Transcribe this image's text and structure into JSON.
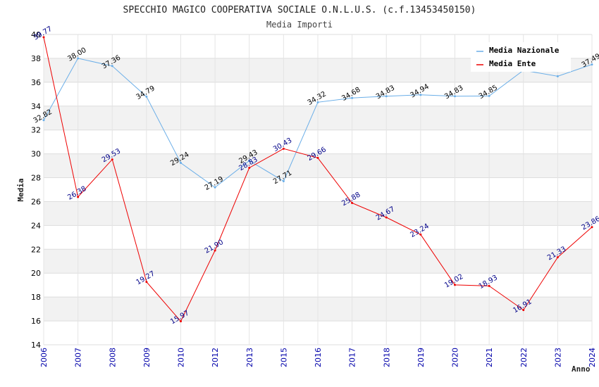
{
  "chart_data": {
    "type": "line",
    "title": "SPECCHIO MAGICO COOPERATIVA SOCIALE O.N.L.U.S. (c.f.13453450150)",
    "subtitle": "Media Importi",
    "xlabel": "Anno",
    "ylabel": "Media",
    "ylim": [
      14,
      40
    ],
    "yticks": [
      "14",
      "16",
      "18",
      "20",
      "22",
      "24",
      "26",
      "28",
      "30",
      "32",
      "34",
      "36",
      "38",
      "40"
    ],
    "categories": [
      "2006",
      "2007",
      "2008",
      "2009",
      "2010",
      "2012",
      "2013",
      "2015",
      "2016",
      "2017",
      "2018",
      "2019",
      "2020",
      "2021",
      "2022",
      "2023",
      "2024"
    ],
    "series": [
      {
        "name": "Media Nazionale",
        "color": "#6aaee8",
        "values": [
          32.82,
          38.0,
          37.36,
          34.79,
          29.24,
          27.19,
          29.43,
          27.71,
          34.32,
          34.68,
          34.83,
          34.94,
          34.83,
          34.85,
          37.0,
          36.5,
          37.49
        ],
        "labels": [
          "32.82",
          "38.00",
          "37.36",
          "34.79",
          "29.24",
          "27.19",
          "29.43",
          "27.71",
          "34.32",
          "34.68",
          "34.83",
          "34.94",
          "34.83",
          "34.85",
          "",
          "",
          "37.49"
        ]
      },
      {
        "name": "Media Ente",
        "color": "#ee0000",
        "values": [
          39.77,
          26.38,
          29.53,
          19.27,
          15.97,
          21.9,
          28.83,
          30.43,
          29.66,
          25.88,
          24.67,
          23.24,
          19.02,
          18.93,
          16.91,
          21.33,
          23.86
        ],
        "labels": [
          "39.77",
          "26.38",
          "29.53",
          "19.27",
          "15.97",
          "21.90",
          "28.83",
          "30.43",
          "29.66",
          "25.88",
          "24.67",
          "23.24",
          "19.02",
          "18.93",
          "16.91",
          "21.33",
          "23.86"
        ]
      }
    ],
    "legend_position": "top-right",
    "grid": true
  }
}
